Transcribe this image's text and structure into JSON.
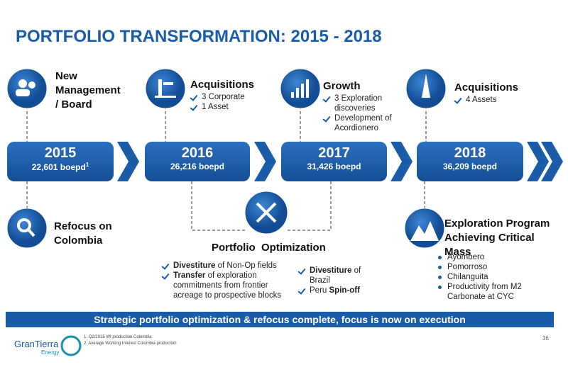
{
  "header": {
    "title": "PORTFOLIO TRANSFORMATION: 2015 - 2018"
  },
  "timeline": [
    {
      "year": "2015",
      "production": "22,601 boepd",
      "note": "1"
    },
    {
      "year": "2016",
      "production": "26,216 boepd"
    },
    {
      "year": "2017",
      "production": "31,426 boepd"
    },
    {
      "year": "2018",
      "production": "36,209 boepd"
    }
  ],
  "top": [
    {
      "heading": "New Management / Board"
    },
    {
      "heading": "Acquisitions",
      "bullets": [
        "3 Corporate",
        "1 Asset"
      ]
    },
    {
      "heading": "Growth",
      "bullets": [
        "3 Exploration discoveries",
        "Development of Acordionero"
      ]
    },
    {
      "heading": "Acquisitions",
      "bullets": [
        "4 Assets"
      ]
    }
  ],
  "refocus": {
    "heading": "Refocus on Colombia"
  },
  "optimization": {
    "heading": "Portfolio  Optimization",
    "left": [
      [
        {
          "text": "Divestiture",
          "bold": true
        },
        {
          "text": " of Non-Op fields"
        }
      ],
      [
        {
          "text": "Transfer",
          "bold": true
        },
        {
          "text": " of exploration commitments from frontier acreage to prospective blocks"
        }
      ]
    ],
    "right": [
      [
        {
          "text": "Divestiture",
          "bold": true
        },
        {
          "text": " of Brazil"
        }
      ],
      [
        {
          "text": "Peru "
        },
        {
          "text": "Spin-off",
          "bold": true
        }
      ]
    ]
  },
  "exploration": {
    "heading": "Exploration Program Achieving Critical Mass",
    "bullets": [
      "Ayombero",
      "Pomorroso",
      "Chilanguita",
      "Productivity from M2 Carbonate at CYC"
    ]
  },
  "banner": "Strategic portfolio optimization & refocus complete,  focus is now on execution",
  "footnotes": [
    {
      "marker": "1.",
      "text": "Q2/2015 WI production Colombia."
    },
    {
      "marker": "2.",
      "text": "Average Working Interest Colombia production"
    }
  ],
  "logo": {
    "name": "GranTierra",
    "sub": "Energy"
  },
  "page_number": "36"
}
